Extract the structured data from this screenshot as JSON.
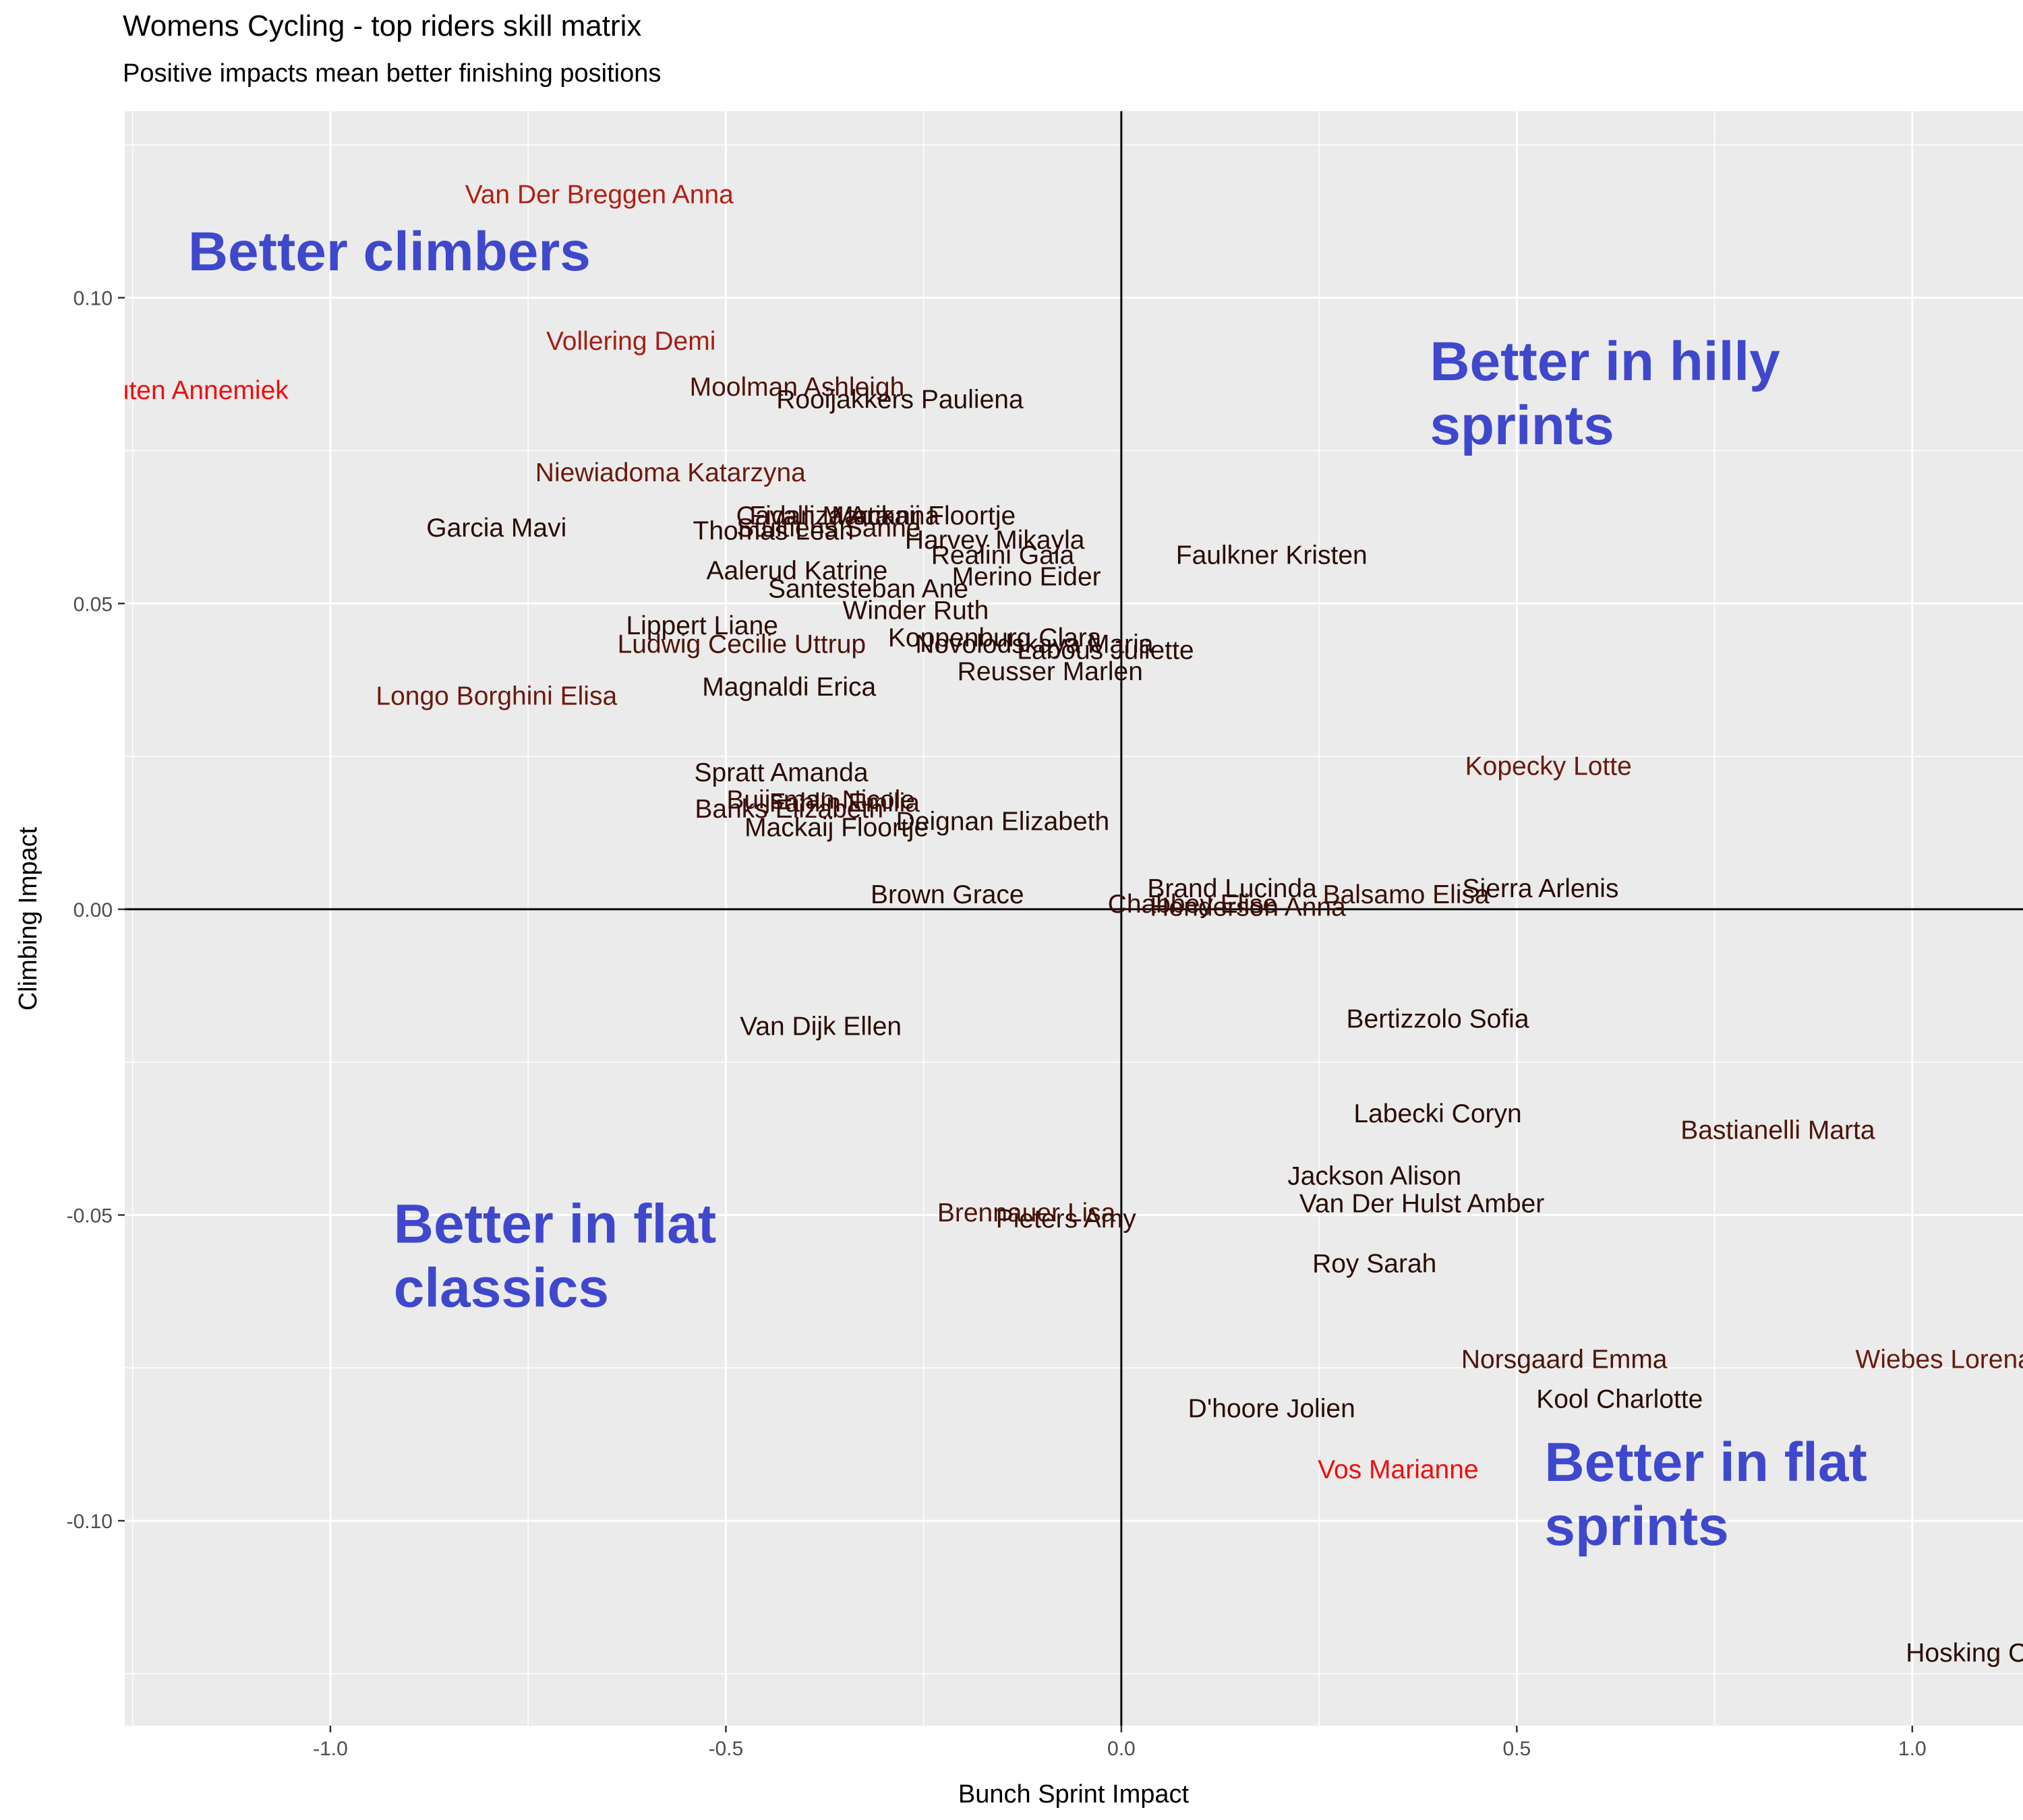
{
  "title": "Womens Cycling - top riders skill matrix",
  "subtitle": "Positive impacts mean better finishing positions",
  "chart_data": {
    "type": "scatter",
    "xlabel": "Bunch Sprint Impact",
    "ylabel": "Climbing Impact",
    "xlim": [
      -1.26,
      1.14
    ],
    "ylim": [
      -0.1335,
      0.1305
    ],
    "x_ticks": [
      -1.0,
      -0.5,
      0.0,
      0.5,
      1.0
    ],
    "x_tick_labels": [
      "-1.0",
      "-0.5",
      "0.0",
      "0.5",
      "1.0"
    ],
    "y_ticks": [
      0.1,
      0.05,
      0.0,
      -0.05,
      -0.1
    ],
    "y_tick_labels": [
      "0.10",
      "0.05",
      "0.00",
      "-0.05",
      "-0.10"
    ],
    "grid": true,
    "reference_lines": {
      "x": 0,
      "y": 0
    },
    "region_labels": [
      {
        "lines": [
          "Better climbers"
        ],
        "x": -1.18,
        "y": 0.1045
      },
      {
        "lines": [
          "Better in hilly",
          "sprints"
        ],
        "x": 0.39,
        "y": 0.0865
      },
      {
        "lines": [
          "Better in flat",
          "classics"
        ],
        "x": -0.92,
        "y": -0.0545
      },
      {
        "lines": [
          "Better in flat",
          "sprints"
        ],
        "x": 0.535,
        "y": -0.0935
      }
    ],
    "points": [
      {
        "label": "Van Der Breggen Anna",
        "x": -0.66,
        "y": 0.117,
        "color": "#b21f14"
      },
      {
        "label": "Vollering Demi",
        "x": -0.62,
        "y": 0.093,
        "color": "#a31f14"
      },
      {
        "label": "Van Vleuten Annemiek",
        "x": -1.22,
        "y": 0.085,
        "color": "#f20d0d"
      },
      {
        "label": "Moolman Ashleigh",
        "x": -0.41,
        "y": 0.0855,
        "color": "#4d1409"
      },
      {
        "label": "Rooijakkers Pauliena",
        "x": -0.28,
        "y": 0.0835,
        "color": "#2a0c05"
      },
      {
        "label": "Niewiadoma Katarzyna",
        "x": -0.57,
        "y": 0.0715,
        "color": "#6a1a0f"
      },
      {
        "label": "Garcia Mavi",
        "x": -0.79,
        "y": 0.0625,
        "color": "#2a0c05"
      },
      {
        "label": "Cavalli Marta",
        "x": -0.39,
        "y": 0.0645,
        "color": "#3a0f07"
      },
      {
        "label": "Fidanza Arianna",
        "x": -0.35,
        "y": 0.0645,
        "color": "#3a0f07"
      },
      {
        "label": "Mackaij Floortje",
        "x": -0.25,
        "y": 0.0645,
        "color": "#2a0c05"
      },
      {
        "label": "Stultiens Sanne",
        "x": -0.37,
        "y": 0.0625,
        "color": "#3a0f07"
      },
      {
        "label": "Thomas Leah",
        "x": -0.44,
        "y": 0.062,
        "color": "#2a0c05"
      },
      {
        "label": "Harvey Mikayla",
        "x": -0.16,
        "y": 0.0605,
        "color": "#2a0c05"
      },
      {
        "label": "Realini Gaia",
        "x": -0.15,
        "y": 0.058,
        "color": "#2a0c05"
      },
      {
        "label": "Faulkner Kristen",
        "x": 0.19,
        "y": 0.058,
        "color": "#2a0c05"
      },
      {
        "label": "Aalerud Katrine",
        "x": -0.41,
        "y": 0.0555,
        "color": "#2a0c05"
      },
      {
        "label": "Merino Eider",
        "x": -0.12,
        "y": 0.0545,
        "color": "#2a0c05"
      },
      {
        "label": "Santesteban Ane",
        "x": -0.32,
        "y": 0.0525,
        "color": "#2a0c05"
      },
      {
        "label": "Winder Ruth",
        "x": -0.26,
        "y": 0.049,
        "color": "#2a0c05"
      },
      {
        "label": "Lippert Liane",
        "x": -0.53,
        "y": 0.0465,
        "color": "#2a0c05"
      },
      {
        "label": "Ludwig Cecilie Uttrup",
        "x": -0.48,
        "y": 0.0435,
        "color": "#4d1409"
      },
      {
        "label": "Koppenburg Clara",
        "x": -0.16,
        "y": 0.0445,
        "color": "#2a0c05"
      },
      {
        "label": "Novolodskaya Maria",
        "x": -0.11,
        "y": 0.0435,
        "color": "#2a0c05"
      },
      {
        "label": "Labous Juliette",
        "x": -0.02,
        "y": 0.0425,
        "color": "#2a0c05"
      },
      {
        "label": "Reusser Marlen",
        "x": -0.09,
        "y": 0.039,
        "color": "#2a0c05"
      },
      {
        "label": "Magnaldi Erica",
        "x": -0.42,
        "y": 0.0365,
        "color": "#2a0c05"
      },
      {
        "label": "Longo Borghini Elisa",
        "x": -0.79,
        "y": 0.035,
        "color": "#6a1a0f"
      },
      {
        "label": "Kopecky Lotte",
        "x": 0.54,
        "y": 0.0235,
        "color": "#6a1a0f"
      },
      {
        "label": "Spratt Amanda",
        "x": -0.43,
        "y": 0.0225,
        "color": "#2a0c05"
      },
      {
        "label": "Buijsman Nicole",
        "x": -0.38,
        "y": 0.018,
        "color": "#3a0f07"
      },
      {
        "label": "Banks Elizabeth",
        "x": -0.42,
        "y": 0.0165,
        "color": "#3a0f07"
      },
      {
        "label": "Fahlin Emilia",
        "x": -0.35,
        "y": 0.0175,
        "color": "#3a0f07"
      },
      {
        "label": "Deignan Elizabeth",
        "x": -0.15,
        "y": 0.0145,
        "color": "#2a0c05"
      },
      {
        "label": "Mackaij Floortje",
        "x": -0.36,
        "y": 0.0135,
        "color": "#2a0c05"
      },
      {
        "label": "Brown Grace",
        "x": -0.22,
        "y": 0.0025,
        "color": "#2a0c05"
      },
      {
        "label": "Brand Lucinda",
        "x": 0.14,
        "y": 0.0035,
        "color": "#2a0c05"
      },
      {
        "label": "Balsamo Elisa",
        "x": 0.36,
        "y": 0.0025,
        "color": "#3a0f07"
      },
      {
        "label": "Sierra Arlenis",
        "x": 0.53,
        "y": 0.0035,
        "color": "#2a0c05"
      },
      {
        "label": "Chabbey Elise",
        "x": 0.09,
        "y": 0.001,
        "color": "#3a0f07"
      },
      {
        "label": "Henderson Anna",
        "x": 0.16,
        "y": 0.0005,
        "color": "#3a0f07"
      },
      {
        "label": "Van Dijk Ellen",
        "x": -0.38,
        "y": -0.019,
        "color": "#2a0c05"
      },
      {
        "label": "Bertizzolo Sofia",
        "x": 0.4,
        "y": -0.0178,
        "color": "#2a0c05"
      },
      {
        "label": "Labecki Coryn",
        "x": 0.4,
        "y": -0.0333,
        "color": "#2a0c05"
      },
      {
        "label": "Bastianelli Marta",
        "x": 0.83,
        "y": -0.036,
        "color": "#4d1409"
      },
      {
        "label": "Jackson Alison",
        "x": 0.32,
        "y": -0.0435,
        "color": "#2a0c05"
      },
      {
        "label": "Van Der Hulst Amber",
        "x": 0.38,
        "y": -0.048,
        "color": "#2a0c05"
      },
      {
        "label": "Brennauer Lisa",
        "x": -0.12,
        "y": -0.0495,
        "color": "#4d1409"
      },
      {
        "label": "Pieters Amy",
        "x": -0.07,
        "y": -0.0505,
        "color": "#3a0f07"
      },
      {
        "label": "Roy Sarah",
        "x": 0.32,
        "y": -0.0578,
        "color": "#2a0c05"
      },
      {
        "label": "Norsgaard Emma",
        "x": 0.56,
        "y": -0.0735,
        "color": "#4d1409"
      },
      {
        "label": "Wiebes Lorena",
        "x": 1.04,
        "y": -0.0735,
        "color": "#6a1a0f"
      },
      {
        "label": "Kool Charlotte",
        "x": 0.63,
        "y": -0.08,
        "color": "#2a0c05"
      },
      {
        "label": "D'hoore Jolien",
        "x": 0.19,
        "y": -0.0815,
        "color": "#2a0c05"
      },
      {
        "label": "Vos Marianne",
        "x": 0.35,
        "y": -0.0915,
        "color": "#f20d0d"
      },
      {
        "label": "Hosking Chloe",
        "x": 1.1,
        "y": -0.1215,
        "color": "#2a0c05"
      }
    ]
  }
}
